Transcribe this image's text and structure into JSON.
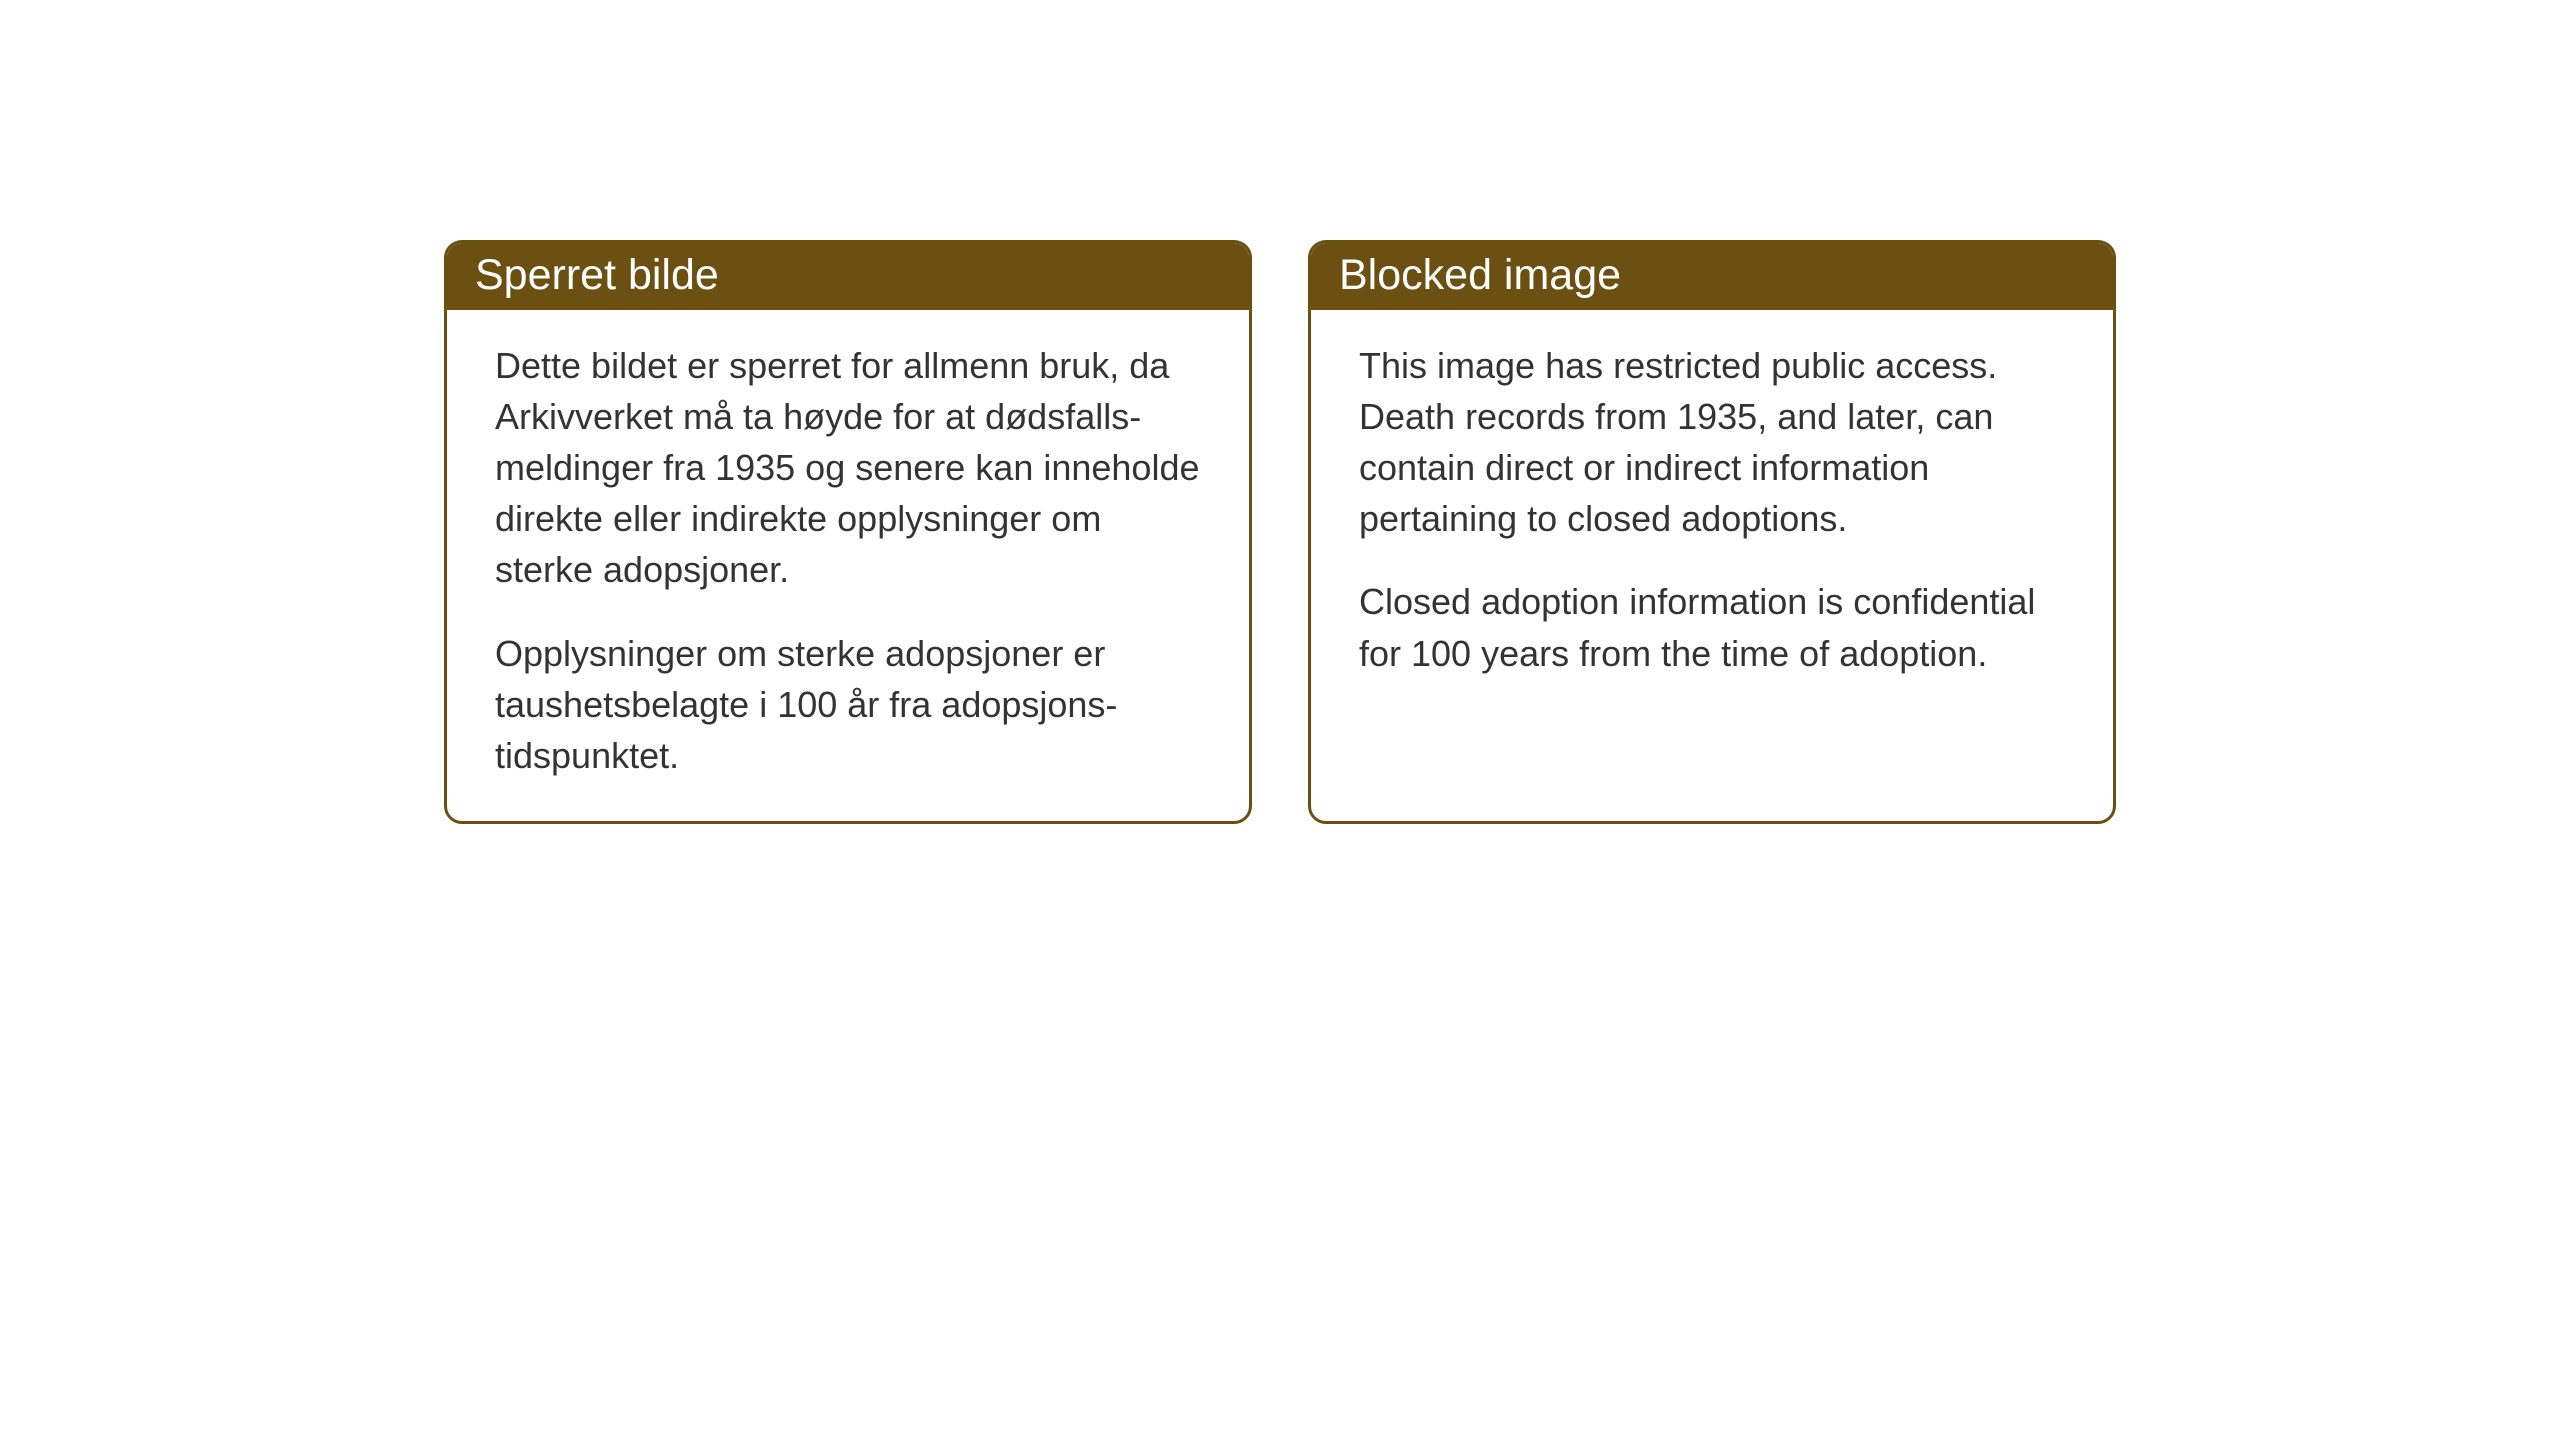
{
  "notices": {
    "norwegian": {
      "title": "Sperret bilde",
      "paragraph1": "Dette bildet er sperret for allmenn bruk, da Arkivverket må ta høyde for at dødsfalls-meldinger fra 1935 og senere kan inneholde direkte eller indirekte opplysninger om sterke adopsjoner.",
      "paragraph2": "Opplysninger om sterke adopsjoner er taushetsbelagte i 100 år fra adopsjons-tidspunktet."
    },
    "english": {
      "title": "Blocked image",
      "paragraph1": "This image has restricted public access. Death records from 1935, and later, can contain direct or indirect information pertaining to closed adoptions.",
      "paragraph2": "Closed adoption information is confidential for 100 years from the time of adoption."
    }
  },
  "styling": {
    "header_background": "#6b5012",
    "header_text_color": "#ffffff",
    "border_color": "#6b5012",
    "body_text_color": "#333333",
    "page_background": "#ffffff",
    "border_radius": 18,
    "border_width": 3,
    "title_fontsize": 43,
    "body_fontsize": 36
  }
}
